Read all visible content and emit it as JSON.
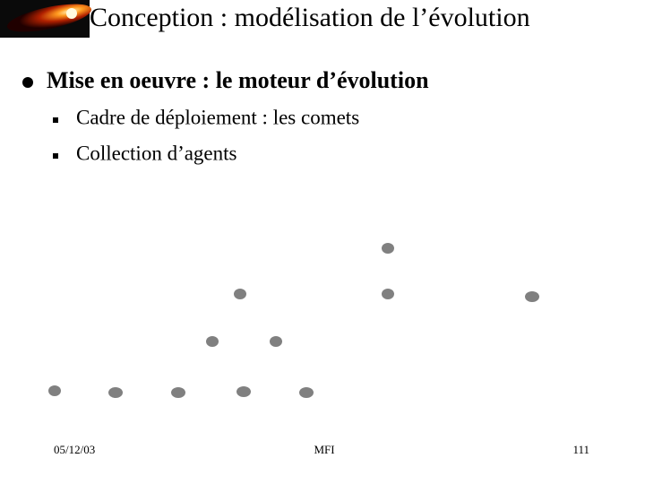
{
  "header": {
    "title": "Conception : modélisation de l’évolution"
  },
  "bullets": [
    {
      "text": "Mise en oeuvre : le moteur d’évolution",
      "subitems": [
        "Cadre de déploiement : les comets",
        "Collection d’agents"
      ]
    }
  ],
  "footer": {
    "date": "05/12/03",
    "center": "MFI",
    "page": "111"
  }
}
